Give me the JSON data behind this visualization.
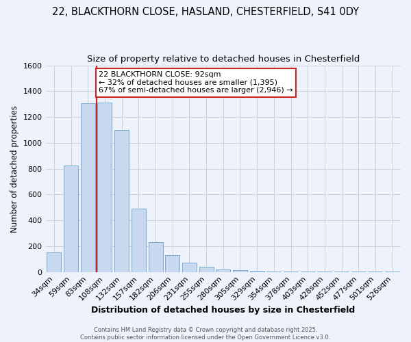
{
  "title1": "22, BLACKTHORN CLOSE, HASLAND, CHESTERFIELD, S41 0DY",
  "title2": "Size of property relative to detached houses in Chesterfield",
  "xlabel": "Distribution of detached houses by size in Chesterfield",
  "ylabel": "Number of detached properties",
  "categories": [
    "34sqm",
    "59sqm",
    "83sqm",
    "108sqm",
    "132sqm",
    "157sqm",
    "182sqm",
    "206sqm",
    "231sqm",
    "255sqm",
    "280sqm",
    "305sqm",
    "329sqm",
    "354sqm",
    "378sqm",
    "403sqm",
    "428sqm",
    "452sqm",
    "477sqm",
    "501sqm",
    "526sqm"
  ],
  "values": [
    150,
    825,
    1305,
    1310,
    1100,
    490,
    230,
    130,
    73,
    38,
    20,
    13,
    10,
    1,
    1,
    1,
    1,
    1,
    1,
    1,
    1
  ],
  "bar_color": "#c8d8ef",
  "bar_edge_color": "#7aaad0",
  "vline_x_index": 2,
  "vline_color": "#cc2222",
  "annotation_line1": "22 BLACKTHORN CLOSE: 92sqm",
  "annotation_line2": "← 32% of detached houses are smaller (1,395)",
  "annotation_line3": "67% of semi-detached houses are larger (2,946) →",
  "annotation_box_color": "#ffffff",
  "annotation_box_edge": "#cc2222",
  "ylim": [
    0,
    1600
  ],
  "yticks": [
    0,
    200,
    400,
    600,
    800,
    1000,
    1200,
    1400,
    1600
  ],
  "footer1": "Contains HM Land Registry data © Crown copyright and database right 2025.",
  "footer2": "Contains public sector information licensed under the Open Government Licence v3.0.",
  "background_color": "#eef2fb",
  "grid_color": "#c8cfe0",
  "title1_fontsize": 10.5,
  "title2_fontsize": 9.5,
  "xlabel_fontsize": 9,
  "ylabel_fontsize": 8.5,
  "tick_fontsize": 8,
  "annotation_fontsize": 8,
  "footer_fontsize": 6
}
